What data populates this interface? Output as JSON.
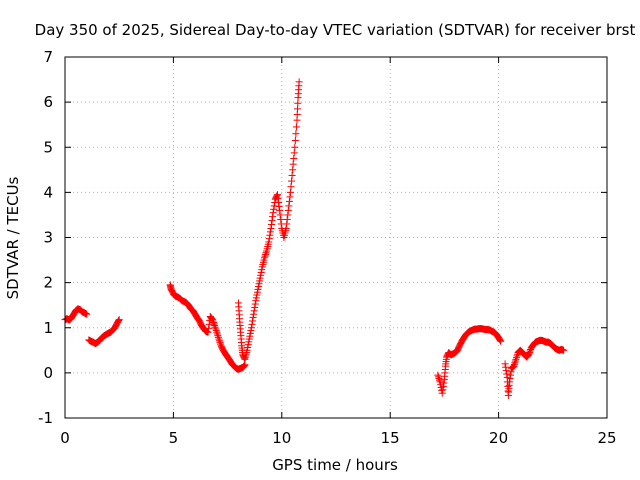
{
  "chart_data": {
    "type": "scatter",
    "title": "Day 350 of 2025, Sidereal Day-to-day VTEC variation (SDTVAR) for receiver brst",
    "xlabel": "GPS time / hours",
    "ylabel": "SDTVAR / TECUs",
    "xlim": [
      0,
      25
    ],
    "ylim": [
      -1,
      7
    ],
    "xticks": [
      0,
      5,
      10,
      15,
      20,
      25
    ],
    "yticks": [
      -1,
      0,
      1,
      2,
      3,
      4,
      5,
      6,
      7
    ],
    "grid": true,
    "marker": "+",
    "series": [
      {
        "name": "SDTVAR",
        "color": "#ff0000",
        "segments": [
          [
            [
              0.0,
              1.18
            ],
            [
              0.1,
              1.2
            ],
            [
              0.2,
              1.17
            ],
            [
              0.3,
              1.22
            ],
            [
              0.4,
              1.3
            ],
            [
              0.5,
              1.38
            ],
            [
              0.6,
              1.42
            ],
            [
              0.7,
              1.4
            ],
            [
              0.8,
              1.35
            ],
            [
              0.9,
              1.33
            ],
            [
              1.0,
              1.3
            ]
          ],
          [
            [
              1.1,
              0.73
            ],
            [
              1.2,
              0.7
            ],
            [
              1.3,
              0.68
            ],
            [
              1.4,
              0.65
            ],
            [
              1.5,
              0.68
            ],
            [
              1.6,
              0.72
            ],
            [
              1.7,
              0.78
            ],
            [
              1.8,
              0.82
            ],
            [
              1.9,
              0.85
            ],
            [
              2.0,
              0.88
            ],
            [
              2.1,
              0.9
            ],
            [
              2.2,
              0.95
            ],
            [
              2.3,
              1.0
            ],
            [
              2.4,
              1.1
            ],
            [
              2.5,
              1.18
            ]
          ],
          [
            [
              4.85,
              1.95
            ],
            [
              4.9,
              1.85
            ],
            [
              5.0,
              1.75
            ],
            [
              5.1,
              1.7
            ],
            [
              5.2,
              1.68
            ],
            [
              5.3,
              1.65
            ],
            [
              5.4,
              1.6
            ],
            [
              5.5,
              1.58
            ],
            [
              5.6,
              1.55
            ],
            [
              5.7,
              1.5
            ],
            [
              5.8,
              1.42
            ],
            [
              5.9,
              1.38
            ],
            [
              6.0,
              1.3
            ],
            [
              6.1,
              1.22
            ],
            [
              6.2,
              1.15
            ],
            [
              6.3,
              1.05
            ],
            [
              6.4,
              0.98
            ],
            [
              6.5,
              0.92
            ],
            [
              6.6,
              0.9
            ],
            [
              6.7,
              1.25
            ],
            [
              6.8,
              1.18
            ],
            [
              6.9,
              1.05
            ],
            [
              7.0,
              0.9
            ],
            [
              7.1,
              0.75
            ],
            [
              7.2,
              0.6
            ],
            [
              7.3,
              0.5
            ],
            [
              7.4,
              0.42
            ],
            [
              7.5,
              0.35
            ],
            [
              7.6,
              0.28
            ],
            [
              7.7,
              0.2
            ],
            [
              7.8,
              0.15
            ],
            [
              7.9,
              0.1
            ],
            [
              8.0,
              0.08
            ],
            [
              8.1,
              0.1
            ],
            [
              8.2,
              0.12
            ],
            [
              8.3,
              0.18
            ]
          ],
          [
            [
              8.0,
              1.55
            ],
            [
              8.05,
              1.2
            ],
            [
              8.1,
              0.9
            ],
            [
              8.15,
              0.6
            ],
            [
              8.2,
              0.4
            ],
            [
              8.3,
              0.3
            ],
            [
              8.4,
              0.5
            ],
            [
              8.5,
              0.75
            ],
            [
              8.6,
              1.0
            ],
            [
              8.7,
              1.3
            ],
            [
              8.8,
              1.6
            ],
            [
              8.9,
              1.85
            ],
            [
              9.0,
              2.1
            ],
            [
              9.1,
              2.35
            ],
            [
              9.2,
              2.55
            ],
            [
              9.3,
              2.7
            ],
            [
              9.4,
              2.9
            ],
            [
              9.5,
              3.2
            ],
            [
              9.6,
              3.55
            ],
            [
              9.7,
              3.85
            ],
            [
              9.8,
              3.95
            ],
            [
              9.9,
              3.6
            ],
            [
              10.0,
              3.2
            ],
            [
              10.1,
              3.0
            ],
            [
              10.2,
              3.2
            ],
            [
              10.3,
              3.6
            ],
            [
              10.4,
              4.0
            ],
            [
              10.5,
              4.5
            ],
            [
              10.6,
              5.0
            ],
            [
              10.7,
              5.6
            ],
            [
              10.75,
              6.1
            ],
            [
              10.8,
              6.45
            ]
          ],
          [
            [
              17.2,
              -0.05
            ],
            [
              17.3,
              -0.2
            ],
            [
              17.4,
              -0.45
            ],
            [
              17.5,
              -0.15
            ],
            [
              17.55,
              0.15
            ],
            [
              17.6,
              0.35
            ],
            [
              17.7,
              0.45
            ],
            [
              17.8,
              0.4
            ],
            [
              17.9,
              0.42
            ],
            [
              18.0,
              0.45
            ],
            [
              18.1,
              0.5
            ],
            [
              18.2,
              0.6
            ],
            [
              18.3,
              0.7
            ],
            [
              18.4,
              0.78
            ],
            [
              18.5,
              0.85
            ],
            [
              18.6,
              0.9
            ],
            [
              18.7,
              0.93
            ],
            [
              18.8,
              0.95
            ],
            [
              18.9,
              0.97
            ],
            [
              19.0,
              0.97
            ],
            [
              19.1,
              0.98
            ],
            [
              19.2,
              0.98
            ],
            [
              19.3,
              0.97
            ],
            [
              19.4,
              0.96
            ],
            [
              19.5,
              0.96
            ],
            [
              19.6,
              0.95
            ],
            [
              19.7,
              0.92
            ],
            [
              19.8,
              0.9
            ],
            [
              19.9,
              0.85
            ],
            [
              20.0,
              0.78
            ],
            [
              20.1,
              0.7
            ]
          ],
          [
            [
              20.3,
              0.2
            ],
            [
              20.4,
              -0.1
            ],
            [
              20.45,
              -0.5
            ],
            [
              20.5,
              -0.2
            ],
            [
              20.6,
              0.1
            ],
            [
              20.7,
              0.15
            ],
            [
              20.8,
              0.3
            ],
            [
              20.9,
              0.45
            ],
            [
              21.0,
              0.5
            ],
            [
              21.1,
              0.45
            ],
            [
              21.2,
              0.4
            ],
            [
              21.3,
              0.35
            ],
            [
              21.4,
              0.42
            ],
            [
              21.5,
              0.55
            ],
            [
              21.6,
              0.62
            ],
            [
              21.7,
              0.68
            ],
            [
              21.8,
              0.7
            ],
            [
              21.9,
              0.72
            ],
            [
              22.0,
              0.72
            ],
            [
              22.1,
              0.7
            ],
            [
              22.2,
              0.68
            ],
            [
              22.3,
              0.68
            ],
            [
              22.4,
              0.65
            ],
            [
              22.5,
              0.6
            ],
            [
              22.6,
              0.55
            ],
            [
              22.7,
              0.52
            ],
            [
              22.8,
              0.5
            ],
            [
              22.9,
              0.52
            ],
            [
              23.0,
              0.5
            ]
          ]
        ]
      }
    ]
  }
}
